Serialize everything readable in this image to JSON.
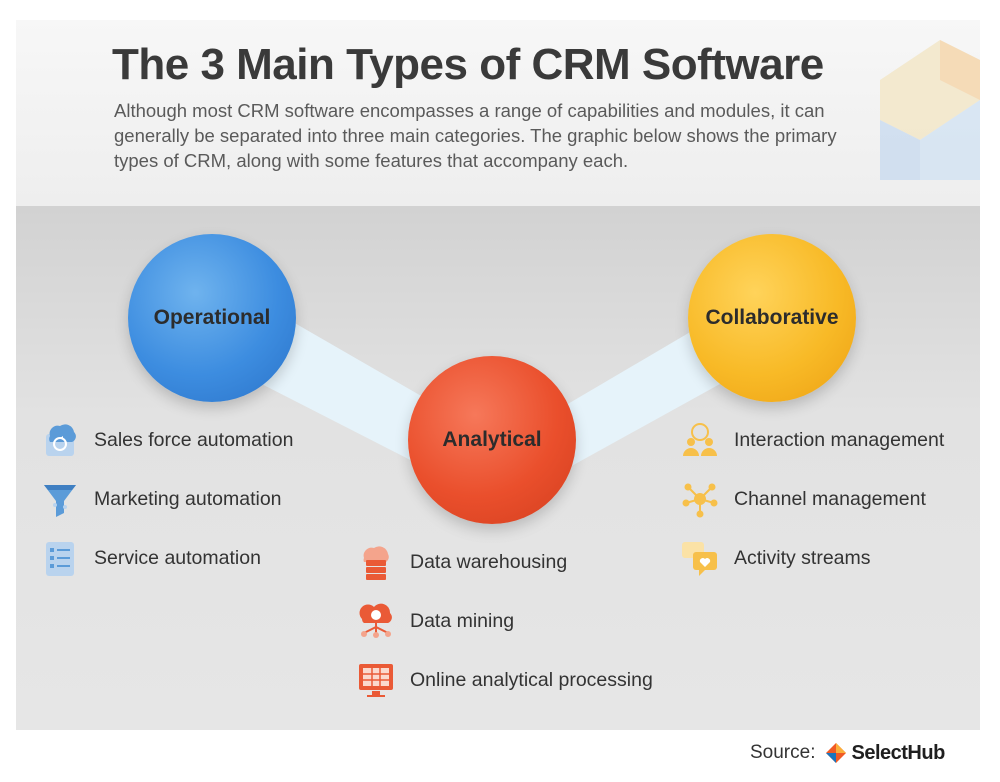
{
  "title": "The 3 Main Types of CRM Software",
  "subtitle": "Although most CRM software encompasses a range of capabilities and modules, it can generally be separated into three main categories. The graphic below shows the primary types of CRM, along with some features that accompany each.",
  "colors": {
    "operational": "#3d8de0",
    "analytical": "#ea4f2c",
    "collaborative": "#f8ba27",
    "connector": "#e3f1fa",
    "operational_icon": "#5b9bd8",
    "analytical_icon": "#ea5a36",
    "collaborative_icon": "#f7c04a"
  },
  "categories": {
    "operational": {
      "label": "Operational",
      "features": [
        {
          "label": "Sales force automation",
          "icon": "cloud-sync-icon"
        },
        {
          "label": "Marketing automation",
          "icon": "funnel-icon"
        },
        {
          "label": "Service automation",
          "icon": "checklist-icon"
        }
      ]
    },
    "analytical": {
      "label": "Analytical",
      "features": [
        {
          "label": "Data warehousing",
          "icon": "cloud-server-icon"
        },
        {
          "label": "Data mining",
          "icon": "cloud-network-icon"
        },
        {
          "label": "Online analytical processing",
          "icon": "monitor-grid-icon"
        }
      ]
    },
    "collaborative": {
      "label": "Collaborative",
      "features": [
        {
          "label": "Interaction management",
          "icon": "people-network-icon"
        },
        {
          "label": "Channel management",
          "icon": "hub-network-icon"
        },
        {
          "label": "Activity streams",
          "icon": "chat-heart-icon"
        }
      ]
    }
  },
  "footer": {
    "source_label": "Source:",
    "logo_text": "SelectHub"
  }
}
